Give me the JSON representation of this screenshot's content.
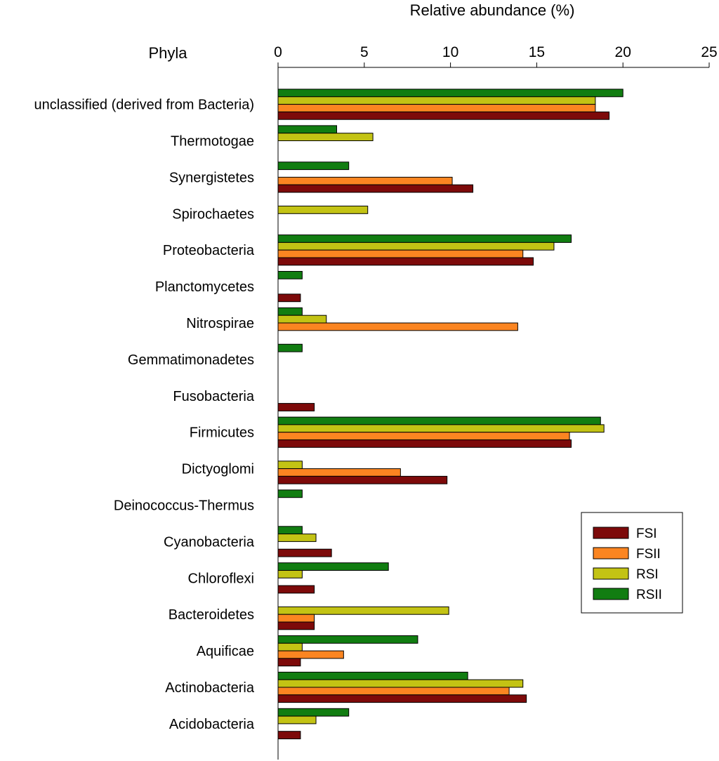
{
  "chart_data": {
    "type": "bar",
    "orientation": "horizontal",
    "title": "",
    "xlabel": "Relative abundance (%)",
    "ylabel": "Phyla",
    "xlim": [
      0,
      25
    ],
    "xticks": [
      "0",
      "5",
      "10",
      "15",
      "20",
      "25"
    ],
    "grid": false,
    "legend_position": "lower-right",
    "categories": [
      "unclassified (derived from Bacteria)",
      "Thermotogae",
      "Synergistetes",
      "Spirochaetes",
      "Proteobacteria",
      "Planctomycetes",
      "Nitrospirae",
      "Gemmatimonadetes",
      "Fusobacteria",
      "Firmicutes",
      "Dictyoglomi",
      "Deinococcus-Thermus",
      "Cyanobacteria",
      "Chloroflexi",
      "Bacteroidetes",
      "Aquificae",
      "Actinobacteria",
      "Acidobacteria"
    ],
    "series": [
      {
        "name": "RSII",
        "color": "#117d11",
        "values": [
          20.0,
          3.4,
          4.1,
          0,
          17.0,
          1.4,
          1.4,
          1.4,
          0,
          18.7,
          0,
          1.4,
          1.4,
          6.4,
          0,
          8.1,
          11.0,
          4.1
        ]
      },
      {
        "name": "RSI",
        "color": "#c3c314",
        "values": [
          18.4,
          5.5,
          0,
          5.2,
          16.0,
          0,
          2.8,
          0,
          0,
          18.9,
          1.4,
          0,
          2.2,
          1.4,
          9.9,
          1.4,
          14.2,
          2.2
        ]
      },
      {
        "name": "FSII",
        "color": "#fb8521",
        "values": [
          18.4,
          0,
          10.1,
          0,
          14.2,
          0,
          13.9,
          0,
          0,
          16.9,
          7.1,
          0,
          0,
          0,
          2.1,
          3.8,
          13.4,
          0
        ]
      },
      {
        "name": "FSI",
        "color": "#7d0a0a",
        "values": [
          19.2,
          0,
          11.3,
          0,
          14.8,
          1.3,
          0,
          0,
          2.1,
          17.0,
          9.8,
          0,
          3.1,
          2.1,
          2.1,
          1.3,
          14.4,
          1.3
        ]
      }
    ],
    "legend_order": [
      "FSI",
      "FSII",
      "RSI",
      "RSII"
    ]
  }
}
